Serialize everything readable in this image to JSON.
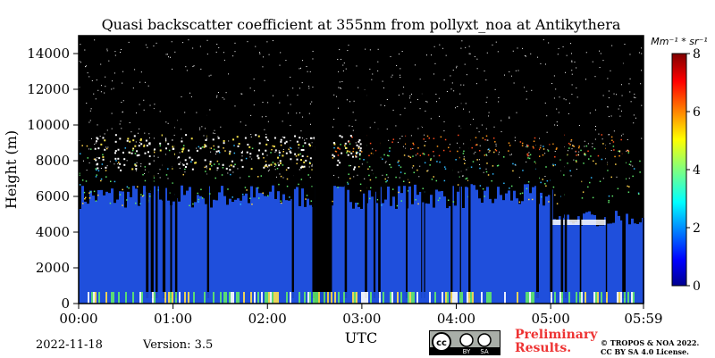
{
  "chart_data": {
    "type": "heatmap",
    "title": "Quasi backscatter coefficient at 355nm from pollyxt_noa at Antikythera",
    "xlabel": "UTC",
    "ylabel": "Height (m)",
    "x_ticks": [
      "00:00",
      "01:00",
      "02:00",
      "03:00",
      "04:00",
      "05:00",
      "05:59"
    ],
    "y_ticks": [
      "0",
      "2000",
      "4000",
      "6000",
      "8000",
      "10000",
      "12000",
      "14000"
    ],
    "ylim": [
      0,
      15000
    ],
    "colorbar": {
      "unit_label": "Mm⁻¹ * sr⁻¹",
      "ticks": [
        "0",
        "2",
        "4",
        "6",
        "8"
      ],
      "range": [
        0,
        8
      ],
      "colormap": "jet"
    },
    "features": {
      "background_color": "#000000",
      "aerosol_layer_top_m": 6000,
      "aerosol_color": "#1f4fdc",
      "cloud_layer_m": [
        7500,
        9500
      ],
      "low_layer_m": [
        4400,
        4700
      ],
      "no_data_gaps_utc": [
        [
          "02:30",
          "02:41"
        ]
      ]
    }
  },
  "footer": {
    "date": "2022-11-18",
    "version": "Version: 3.5",
    "preliminary": "Preliminary Results.",
    "copyright_line1": "© TROPOS & NOA 2022.",
    "copyright_line2": "CC BY SA 4.0 License.",
    "license_text": "cc",
    "license_by": "BY",
    "license_sa": "SA"
  }
}
